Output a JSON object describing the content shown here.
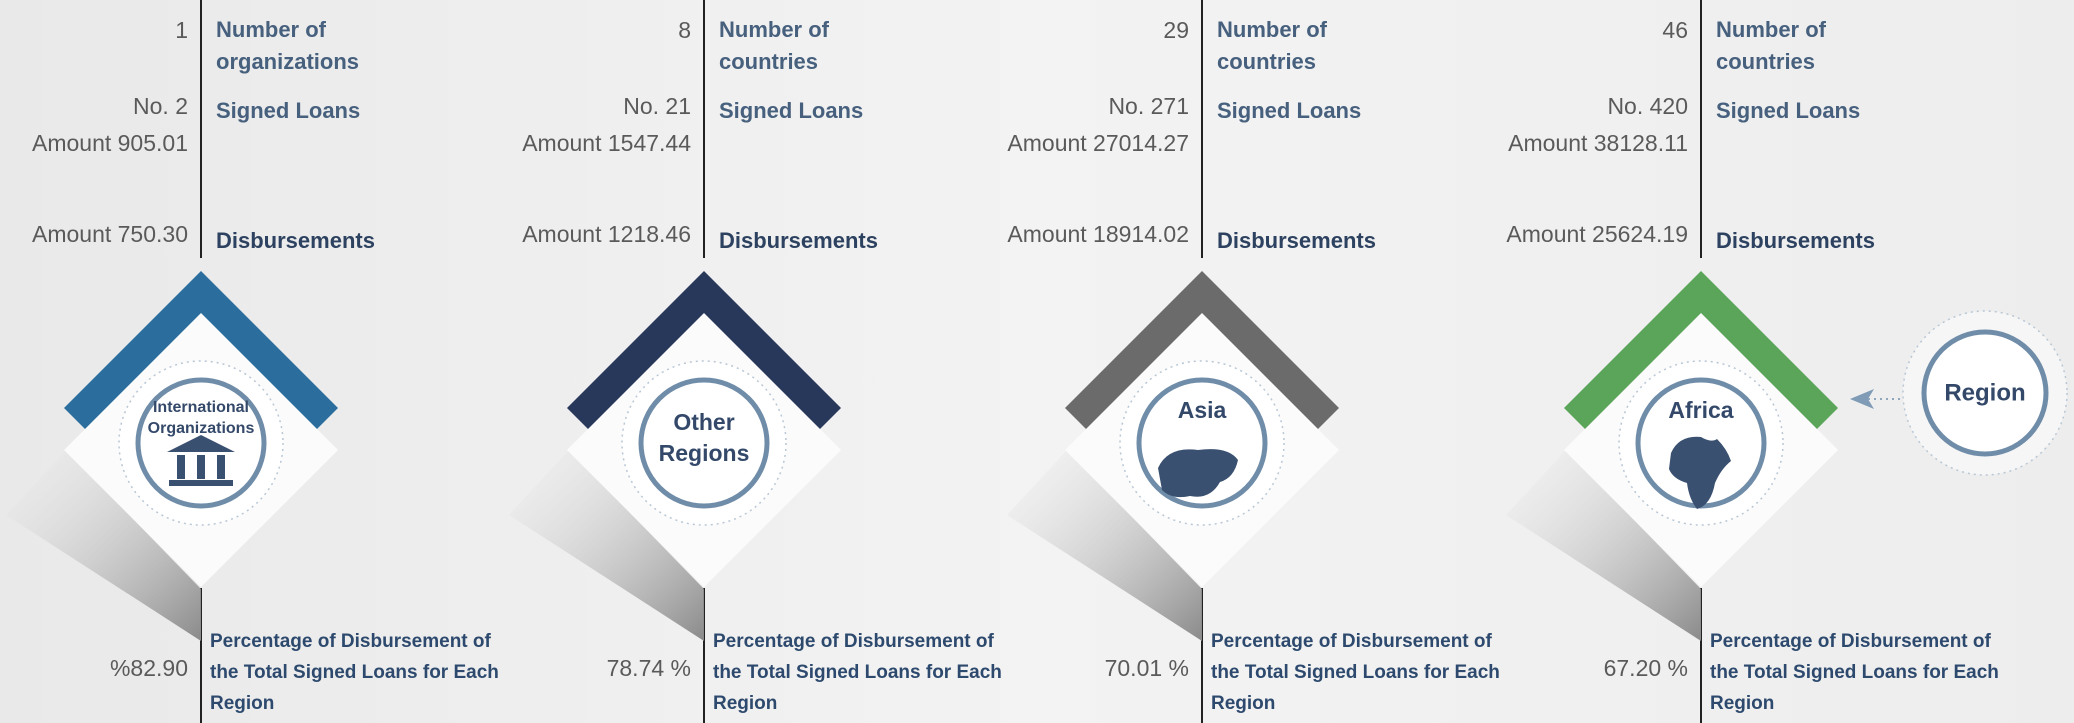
{
  "labels": {
    "signed_loans": "Signed Loans",
    "disbursements": "Disbursements",
    "percentage": "Percentage of Disbursement of the Total Signed Loans for Each Region",
    "region": "Region"
  },
  "regions": [
    {
      "name": "International Organizations",
      "color": "#2b6e9e",
      "count": "1",
      "count_label": "Number of organizations",
      "signed_no": "No. 2",
      "signed_amount": "Amount 905.01",
      "disbursement_amount": "Amount 750.30",
      "percentage": "%82.90"
    },
    {
      "name": "Other Regions",
      "color": "#27385a",
      "count": "8",
      "count_label": "Number of countries",
      "signed_no": "No. 21",
      "signed_amount": "Amount 1547.44",
      "disbursement_amount": "Amount 1218.46",
      "percentage": "78.74 %"
    },
    {
      "name": "Asia",
      "color": "#6b6b6b",
      "count": "29",
      "count_label": "Number of countries",
      "signed_no": "No. 271",
      "signed_amount": "Amount 27014.27",
      "disbursement_amount": "Amount 18914.02",
      "percentage": "70.01 %"
    },
    {
      "name": "Africa",
      "color": "#5aa55a",
      "count": "46",
      "count_label": "Number of countries",
      "signed_no": "No. 420",
      "signed_amount": "Amount 38128.11",
      "disbursement_amount": "Amount 25624.19",
      "percentage": "67.20 %"
    }
  ]
}
